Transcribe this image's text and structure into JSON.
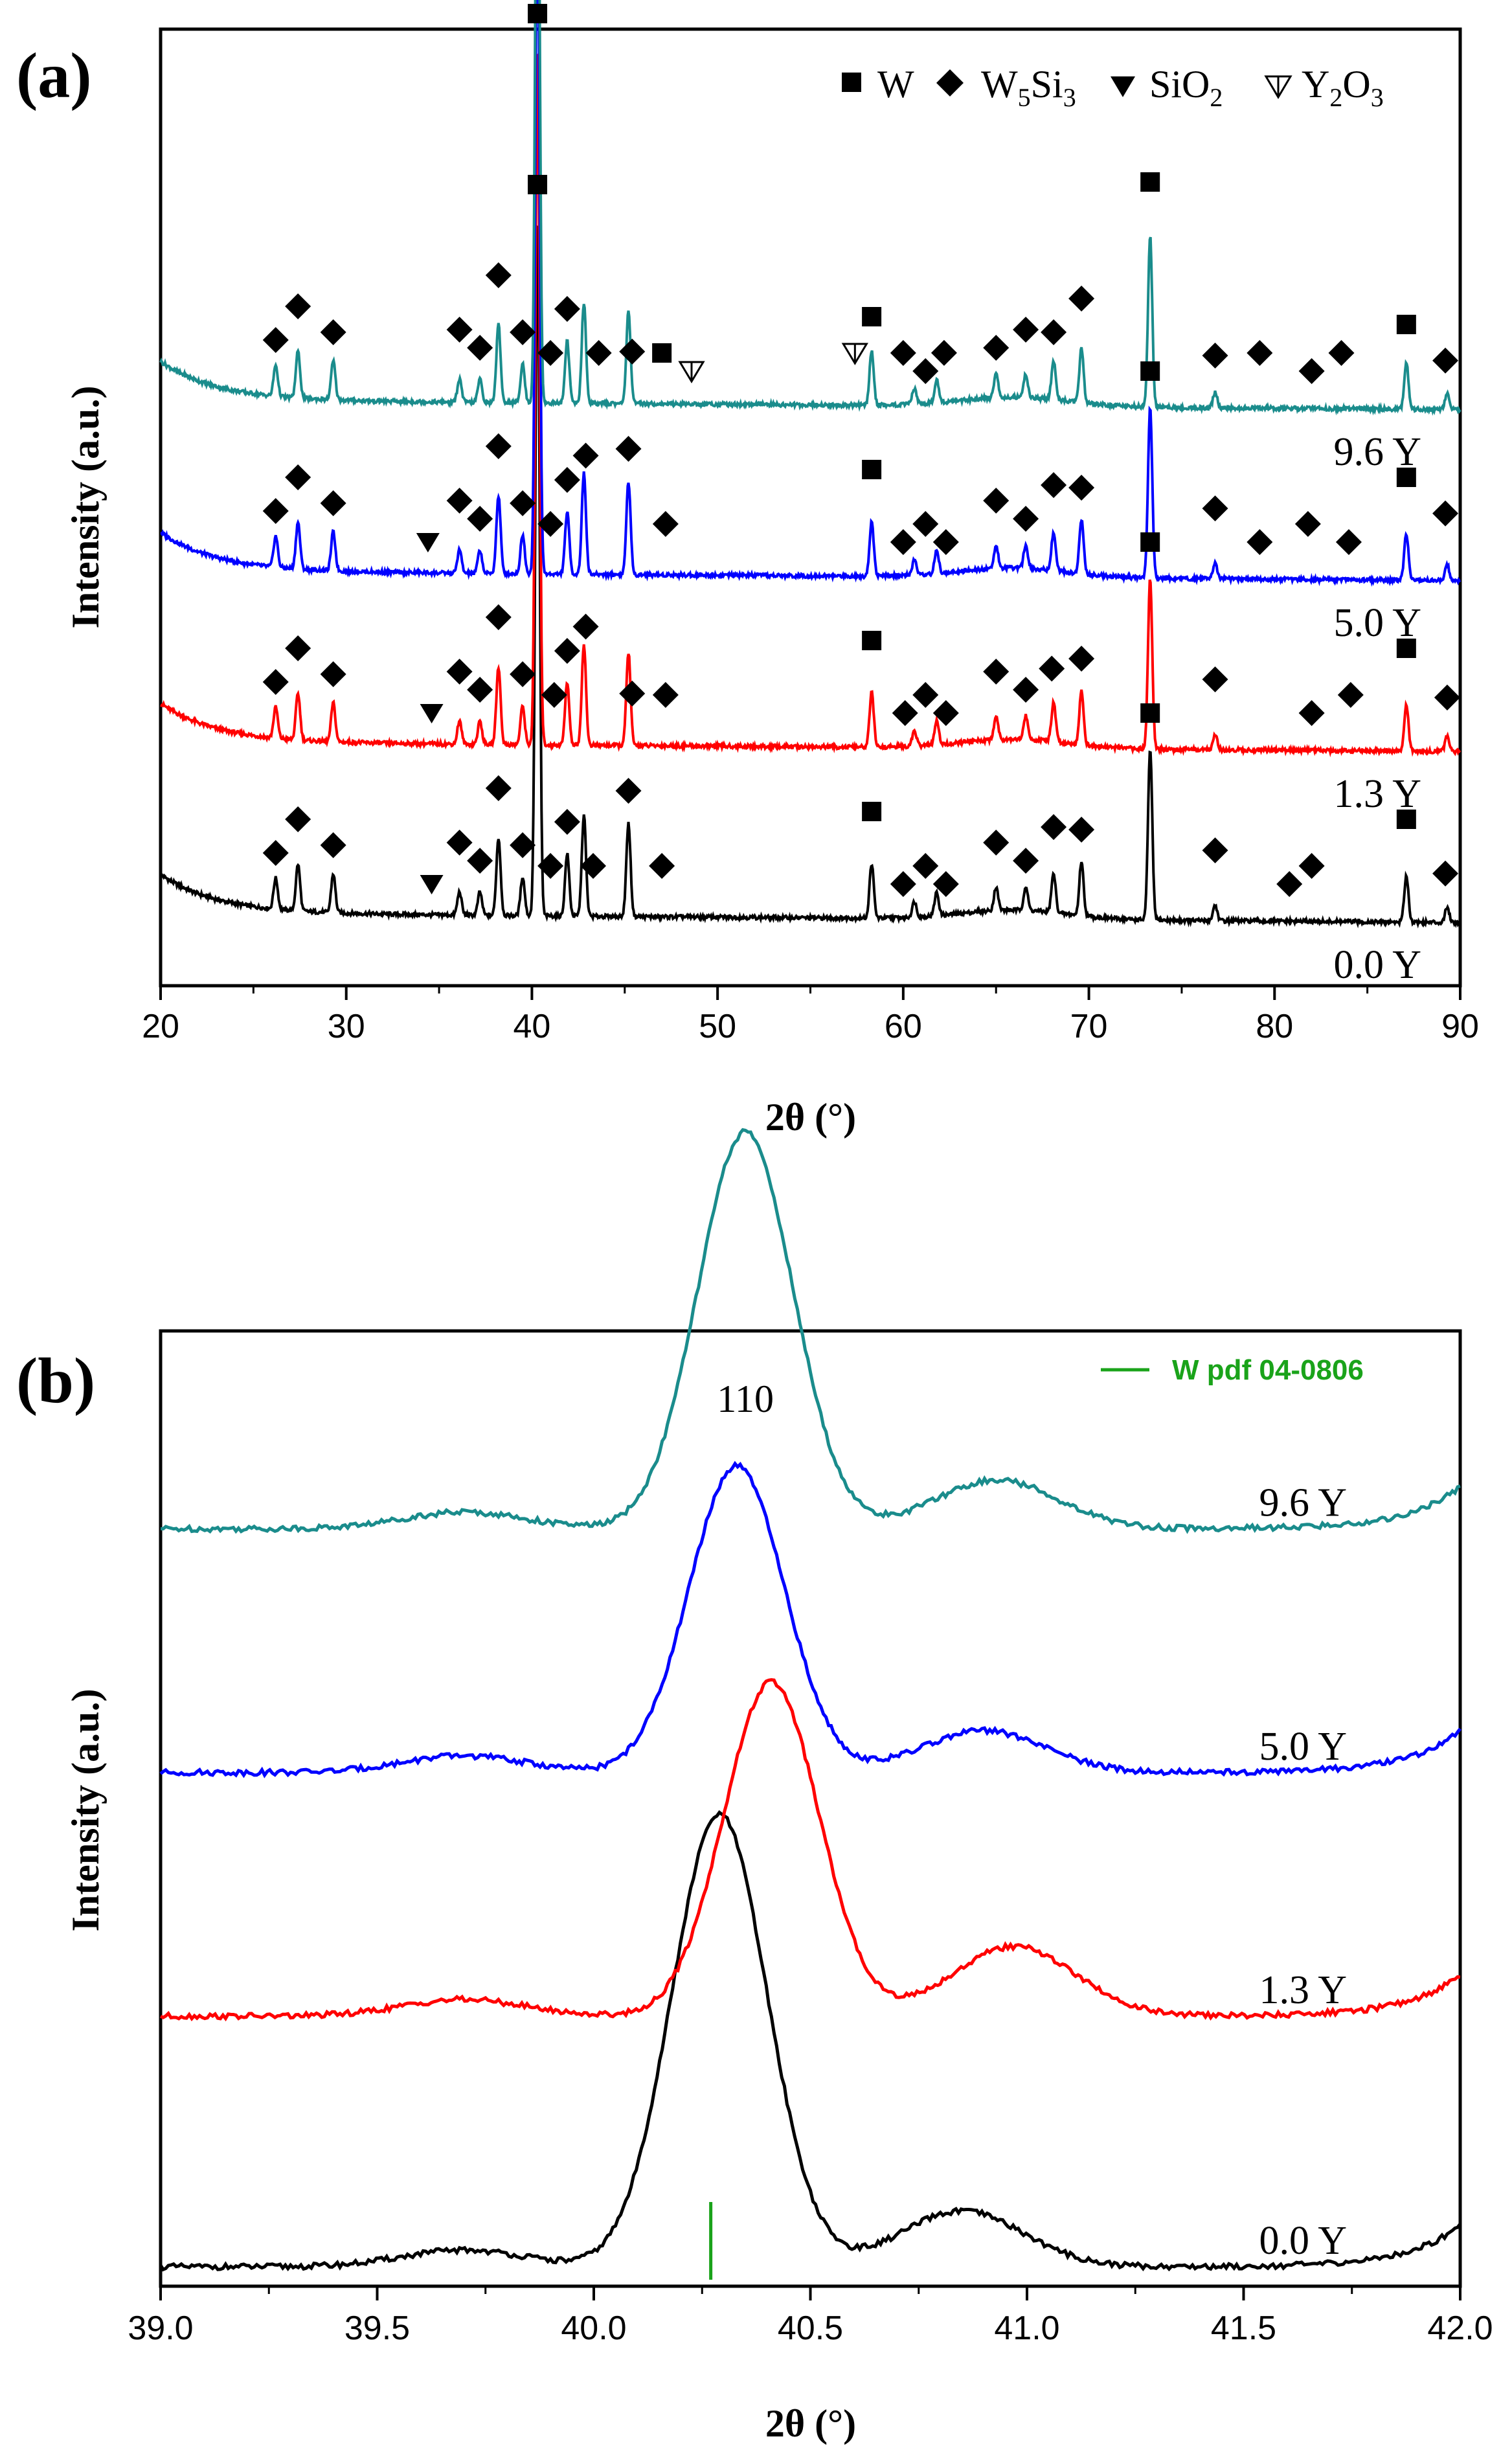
{
  "chart_data": [
    {
      "id": "a",
      "panel_label": "(a)",
      "type": "line",
      "xlabel": "2θ (°)",
      "ylabel": "Intensity (a.u.)",
      "xlim": [
        20,
        90
      ],
      "xticks": [
        "20",
        "30",
        "40",
        "50",
        "60",
        "70",
        "80",
        "90"
      ],
      "legend": {
        "position": "top-right",
        "entries": [
          {
            "marker": "square",
            "name": "W"
          },
          {
            "marker": "diamond",
            "name": "W",
            "sub1": "5",
            "mid": "Si",
            "sub2": "3"
          },
          {
            "marker": "triangle-filled",
            "name": "SiO",
            "sub1": "2"
          },
          {
            "marker": "triangle-open",
            "name": "Y",
            "sub1": "2",
            "mid": "O",
            "sub2": "3"
          }
        ]
      },
      "series": [
        {
          "name": "0.0 Y",
          "color": "#000000",
          "offset": 0
        },
        {
          "name": "1.3 Y",
          "color": "#ff0000",
          "offset": 0.22
        },
        {
          "name": "5.0 Y",
          "color": "#0000ff",
          "offset": 0.44
        },
        {
          "name": "9.6 Y",
          "color": "#1a8c8c",
          "offset": 0.66
        }
      ],
      "peaks": [
        {
          "pos": 26.2,
          "h": 0.04
        },
        {
          "pos": 27.4,
          "h": 0.06
        },
        {
          "pos": 29.3,
          "h": 0.05
        },
        {
          "pos": 36.1,
          "h": 0.03
        },
        {
          "pos": 37.2,
          "h": 0.03
        },
        {
          "pos": 38.2,
          "h": 0.1
        },
        {
          "pos": 39.5,
          "h": 0.05
        },
        {
          "pos": 40.3,
          "h": 0.9
        },
        {
          "pos": 41.9,
          "h": 0.08
        },
        {
          "pos": 42.8,
          "h": 0.13
        },
        {
          "pos": 45.2,
          "h": 0.12
        },
        {
          "pos": 58.3,
          "h": 0.07
        },
        {
          "pos": 60.6,
          "h": 0.02
        },
        {
          "pos": 61.8,
          "h": 0.03
        },
        {
          "pos": 65.0,
          "h": 0.03
        },
        {
          "pos": 66.6,
          "h": 0.03
        },
        {
          "pos": 68.1,
          "h": 0.05
        },
        {
          "pos": 69.6,
          "h": 0.07
        },
        {
          "pos": 73.3,
          "h": 0.22
        },
        {
          "pos": 76.8,
          "h": 0.02
        },
        {
          "pos": 87.1,
          "h": 0.06
        },
        {
          "pos": 89.3,
          "h": 0.02
        }
      ],
      "markers": [
        {
          "series": "0.0 Y",
          "type": "square",
          "x": [
            40.3,
            58.3,
            73.3,
            87.1
          ]
        },
        {
          "series": "0.0 Y",
          "type": "diamond",
          "x": [
            26.2,
            27.4,
            29.3,
            36.1,
            37.2,
            38.2,
            39.5,
            41.0,
            41.9,
            43.3,
            45.2,
            47.0,
            60.0,
            61.2,
            62.3,
            65.0,
            66.6,
            68.1,
            69.6,
            76.8,
            80.8,
            82.0,
            89.2
          ]
        },
        {
          "series": "0.0 Y",
          "type": "triangle-filled",
          "x": [
            34.6
          ]
        },
        {
          "series": "1.3 Y",
          "type": "square",
          "x": [
            40.3,
            58.3,
            73.3,
            87.1
          ]
        },
        {
          "series": "1.3 Y",
          "type": "diamond",
          "x": [
            26.2,
            27.4,
            29.3,
            36.1,
            37.2,
            38.2,
            39.5,
            41.2,
            41.9,
            42.9,
            45.4,
            47.2,
            60.1,
            61.2,
            62.3,
            65.0,
            66.6,
            68.0,
            69.6,
            76.8,
            82.0,
            84.1,
            89.3
          ]
        },
        {
          "series": "1.3 Y",
          "type": "triangle-filled",
          "x": [
            34.6
          ]
        },
        {
          "series": "5.0 Y",
          "type": "square",
          "x": [
            40.3,
            58.3,
            73.3,
            87.1
          ]
        },
        {
          "series": "5.0 Y",
          "type": "diamond",
          "x": [
            26.2,
            27.4,
            29.3,
            36.1,
            37.2,
            38.2,
            39.5,
            41.0,
            41.9,
            42.9,
            45.2,
            47.2,
            60.0,
            61.2,
            62.3,
            65.0,
            66.6,
            68.1,
            69.6,
            76.8,
            79.2,
            81.8,
            84.0,
            89.2
          ]
        },
        {
          "series": "5.0 Y",
          "type": "triangle-filled",
          "x": [
            34.4
          ]
        },
        {
          "series": "9.6 Y",
          "type": "square",
          "x": [
            40.3,
            47.0,
            58.3,
            73.3,
            87.1
          ]
        },
        {
          "series": "9.6 Y",
          "type": "diamond",
          "x": [
            26.2,
            27.4,
            29.3,
            36.1,
            37.2,
            38.2,
            39.5,
            41.0,
            41.9,
            43.6,
            45.4,
            60.0,
            61.2,
            62.2,
            65.0,
            66.6,
            68.1,
            69.6,
            76.8,
            79.2,
            82.0,
            83.6,
            89.2
          ]
        },
        {
          "series": "9.6 Y",
          "type": "triangle-open",
          "x": [
            48.6,
            57.4
          ]
        }
      ]
    },
    {
      "id": "b",
      "panel_label": "(b)",
      "type": "line",
      "xlabel": "2θ (°)",
      "ylabel": "Intensity (a.u.)",
      "xlim": [
        39.0,
        42.0
      ],
      "xticks": [
        "39.0",
        "39.5",
        "40.0",
        "40.5",
        "41.0",
        "41.5",
        "42.0"
      ],
      "legend": {
        "position": "top-right",
        "entries": [
          {
            "marker": "vertical-line",
            "name": "W pdf 04-0806",
            "color": "#1aa31a"
          }
        ]
      },
      "reference_line": {
        "x": 40.27,
        "color": "#1aa31a",
        "name": "W pdf 04-0806"
      },
      "peak_annotation": {
        "text": "110",
        "x": 40.35
      },
      "series": [
        {
          "name": "0.0 Y",
          "color": "#000000",
          "offset": 0,
          "peak_x": 40.29,
          "peak_h": 0.325,
          "shoulder_x": 40.85,
          "shoulder_h": 0.04
        },
        {
          "name": "1.3 Y",
          "color": "#ff0000",
          "offset": 0.18,
          "peak_x": 40.41,
          "peak_h": 0.24,
          "shoulder_x": 40.97,
          "shoulder_h": 0.05
        },
        {
          "name": "5.0 Y",
          "color": "#0000ff",
          "offset": 0.355,
          "peak_x": 40.33,
          "peak_h": 0.22,
          "shoulder_x": 40.9,
          "shoulder_h": 0.03
        },
        {
          "name": "9.6 Y",
          "color": "#1a8c8c",
          "offset": 0.53,
          "peak_x": 40.35,
          "peak_h": 0.285,
          "shoulder_x": 40.93,
          "shoulder_h": 0.035
        }
      ]
    }
  ]
}
